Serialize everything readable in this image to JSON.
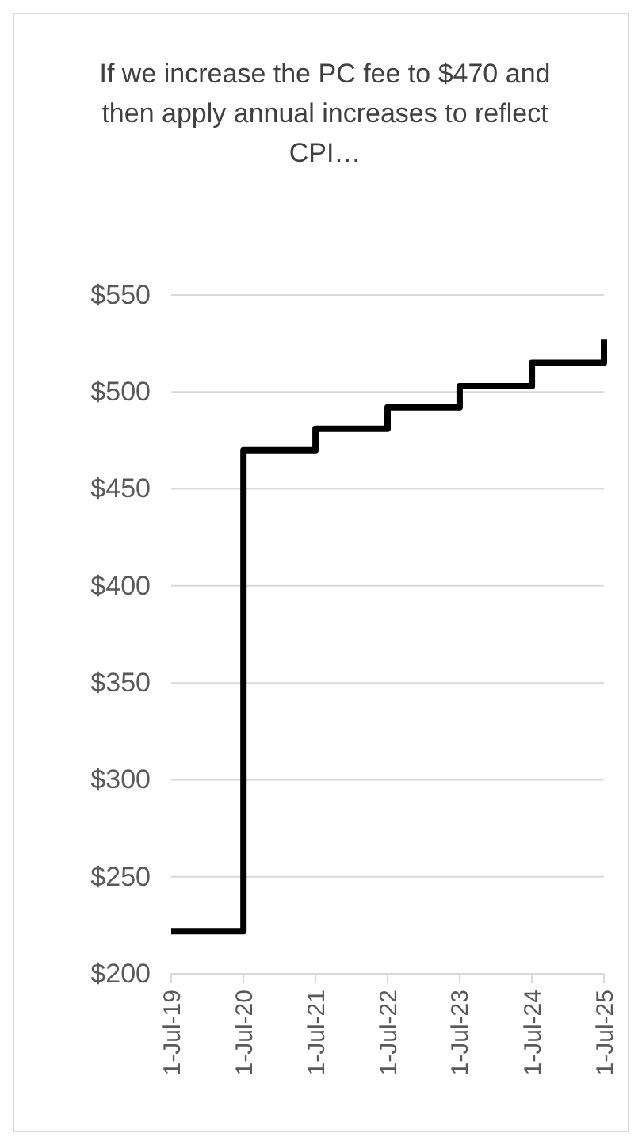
{
  "chart_data": {
    "type": "step",
    "title": "If we increase the PC fee to $470 and then apply annual increases to reflect CPI…",
    "x": [
      "2019-07-01",
      "2020-07-01",
      "2021-07-01",
      "2022-07-01",
      "2023-07-01",
      "2024-07-01",
      "2025-07-01"
    ],
    "series": [
      {
        "color": "#000000",
        "values": [
          222,
          470,
          481,
          492,
          503,
          515,
          527
        ]
      }
    ],
    "xlim": [
      "2019-07-01",
      "2025-07-01"
    ],
    "xticks": [
      {
        "value": "2019-07-01",
        "label": "1-Jul-19"
      },
      {
        "value": "2020-07-01",
        "label": "1-Jul-20"
      },
      {
        "value": "2021-07-01",
        "label": "1-Jul-21"
      },
      {
        "value": "2022-07-01",
        "label": "1-Jul-22"
      },
      {
        "value": "2023-07-01",
        "label": "1-Jul-23"
      },
      {
        "value": "2024-07-01",
        "label": "1-Jul-24"
      },
      {
        "value": "2025-07-01",
        "label": "1-Jul-25"
      }
    ],
    "ylim": [
      200,
      550
    ],
    "yticks": [
      {
        "value": 200,
        "label": "$200"
      },
      {
        "value": 250,
        "label": "$250"
      },
      {
        "value": 300,
        "label": "$300"
      },
      {
        "value": 350,
        "label": "$350"
      },
      {
        "value": 400,
        "label": "$400"
      },
      {
        "value": 450,
        "label": "$450"
      },
      {
        "value": 500,
        "label": "$500"
      },
      {
        "value": 550,
        "label": "$550"
      }
    ],
    "grid": "y",
    "marker": "none",
    "line_style": "solid"
  }
}
